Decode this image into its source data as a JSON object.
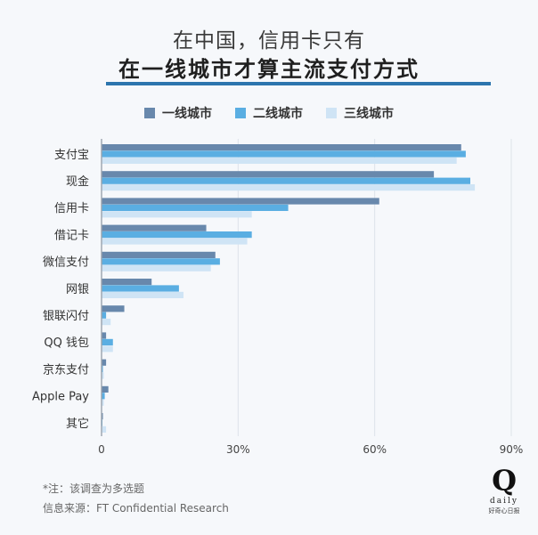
{
  "header": {
    "title_line1": "在中国，信用卡只有",
    "title_line2": "在一线城市才算主流支付方式"
  },
  "footer": {
    "note": "*注：该调查为多选题",
    "source": "信息来源：FT Confidential Research"
  },
  "logo": {
    "mark": "Q",
    "sub1": "daily",
    "sub2": "好奇心日报"
  },
  "colors": {
    "tier1": "#6888ac",
    "tier2": "#5aaee2",
    "tier3": "#cfe4f5",
    "grid": "#dde3ea",
    "title_rule": "#2c75ae"
  },
  "chart_data": {
    "type": "bar",
    "orientation": "horizontal",
    "title": "在中国，信用卡只有在一线城市才算主流支付方式",
    "categories": [
      "支付宝",
      "现金",
      "信用卡",
      "借记卡",
      "微信支付",
      "网银",
      "银联闪付",
      "QQ 钱包",
      "京东支付",
      "Apple Pay",
      "其它"
    ],
    "series": [
      {
        "name": "一线城市",
        "color": "#6888ac",
        "values": [
          79,
          73,
          61,
          23,
          25,
          11,
          5,
          1,
          1,
          1.5,
          0.3
        ]
      },
      {
        "name": "二线城市",
        "color": "#5aaee2",
        "values": [
          80,
          81,
          41,
          33,
          26,
          17,
          1,
          2.5,
          0.3,
          0.7,
          0.2
        ]
      },
      {
        "name": "三线城市",
        "color": "#cfe4f5",
        "values": [
          78,
          82,
          33,
          32,
          24,
          18,
          2,
          2.5,
          0.5,
          0.5,
          1
        ]
      }
    ],
    "xlim": [
      0,
      90
    ],
    "xticks": [
      0,
      30,
      60,
      90
    ],
    "xtick_labels": [
      "0",
      "30%",
      "60%",
      "90%"
    ],
    "grid": true,
    "legend_position": "top-center"
  }
}
